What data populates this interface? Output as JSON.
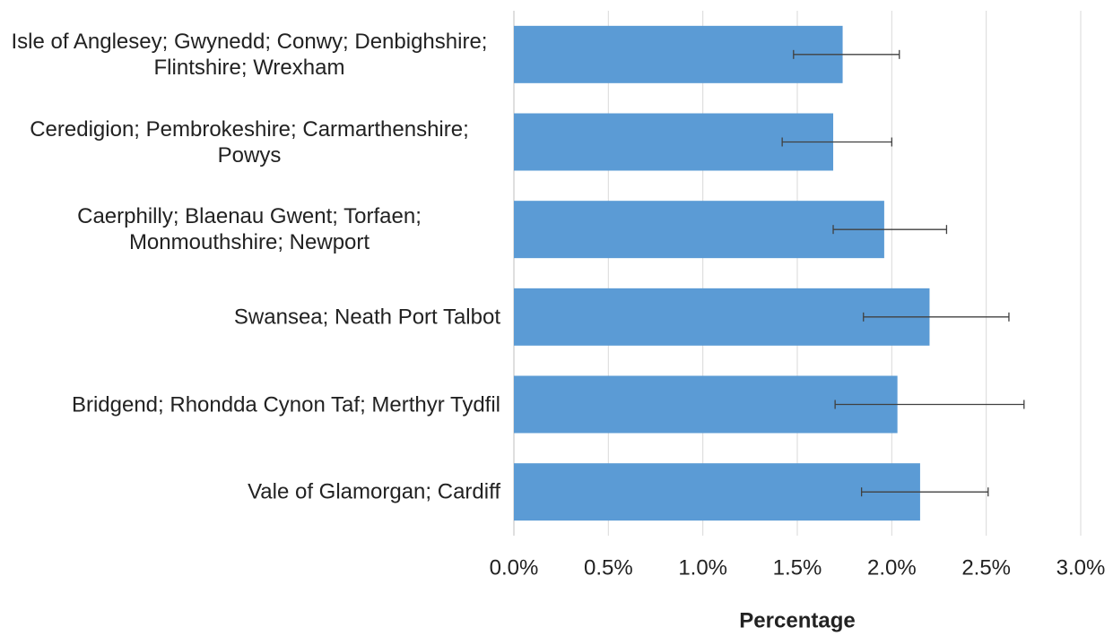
{
  "chart_data": {
    "type": "bar",
    "orientation": "horizontal",
    "x_label": "Percentage",
    "categories": [
      "Isle of Anglesey; Gwynedd; Conwy; Denbighshire; Flintshire; Wrexham",
      "Ceredigion; Pembrokeshire; Carmarthenshire; Powys",
      "Caerphilly; Blaenau Gwent; Torfaen; Monmouthshire; Newport",
      "Swansea; Neath Port Talbot",
      "Bridgend; Rhondda Cynon Taf; Merthyr Tydfil",
      "Vale of Glamorgan; Cardiff"
    ],
    "values": [
      1.74,
      1.69,
      1.96,
      2.2,
      2.03,
      2.15
    ],
    "lower": [
      1.48,
      1.42,
      1.69,
      1.85,
      1.7,
      1.84
    ],
    "upper": [
      2.04,
      2.0,
      2.29,
      2.62,
      2.7,
      2.51
    ],
    "color": "#5b9bd5",
    "error_color": "#404040",
    "xlim": [
      0,
      3
    ],
    "xticks": [
      {
        "value": 0,
        "label": "0.0%"
      },
      {
        "value": 0.5,
        "label": "0.5%"
      },
      {
        "value": 1,
        "label": "1.0%"
      },
      {
        "value": 1.5,
        "label": "1.5%"
      },
      {
        "value": 2,
        "label": "2.0%"
      },
      {
        "value": 2.5,
        "label": "2.5%"
      },
      {
        "value": 3,
        "label": "3.0%"
      }
    ],
    "grid": true
  }
}
